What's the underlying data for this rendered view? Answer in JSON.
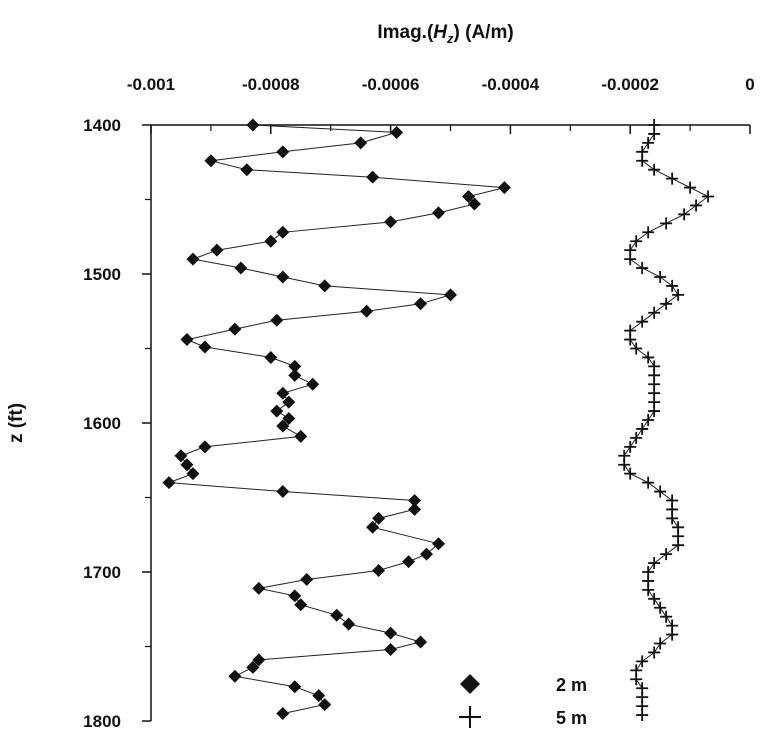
{
  "chart_data": {
    "type": "scatter",
    "title": "",
    "xlabel": "Imag.(H_z) (A/m)",
    "xlabel_parts": {
      "prefix": "Imag.(",
      "var": "H",
      "sub": "z",
      "suffix": ") (A/m)"
    },
    "ylabel": "z (ft)",
    "xlim": [
      -0.001,
      0
    ],
    "ylim": [
      1400,
      1800
    ],
    "y_inverted": true,
    "x_axis_position": "top",
    "grid": false,
    "xticks": [
      -0.001,
      -0.0008,
      -0.0006,
      -0.0004,
      -0.0002,
      0
    ],
    "xtick_labels": [
      "-0.001",
      "-0.0008",
      "-0.0006",
      "-0.0004",
      "-0.0002",
      "0"
    ],
    "yticks": [
      1400,
      1500,
      1600,
      1700,
      1800
    ],
    "ytick_labels": [
      "1400",
      "1500",
      "1600",
      "1700",
      "1800"
    ],
    "legend_position": "bottom-right",
    "series": [
      {
        "name": "2 m",
        "marker": "diamond",
        "points": [
          [
            -0.00083,
            1400
          ],
          [
            -0.00059,
            1405
          ],
          [
            -0.00065,
            1412
          ],
          [
            -0.00078,
            1418
          ],
          [
            -0.0009,
            1424
          ],
          [
            -0.00084,
            1430
          ],
          [
            -0.00063,
            1435
          ],
          [
            -0.00041,
            1442
          ],
          [
            -0.00047,
            1448
          ],
          [
            -0.00046,
            1453
          ],
          [
            -0.00052,
            1459
          ],
          [
            -0.0006,
            1465
          ],
          [
            -0.00078,
            1472
          ],
          [
            -0.0008,
            1478
          ],
          [
            -0.00089,
            1484
          ],
          [
            -0.00093,
            1490
          ],
          [
            -0.00085,
            1496
          ],
          [
            -0.00078,
            1502
          ],
          [
            -0.00071,
            1508
          ],
          [
            -0.0005,
            1514
          ],
          [
            -0.00055,
            1520
          ],
          [
            -0.00064,
            1525
          ],
          [
            -0.00079,
            1531
          ],
          [
            -0.00086,
            1537
          ],
          [
            -0.00094,
            1544
          ],
          [
            -0.00091,
            1549
          ],
          [
            -0.0008,
            1556
          ],
          [
            -0.00076,
            1562
          ],
          [
            -0.00076,
            1568
          ],
          [
            -0.00073,
            1574
          ],
          [
            -0.00078,
            1580
          ],
          [
            -0.00077,
            1586
          ],
          [
            -0.00079,
            1592
          ],
          [
            -0.00077,
            1597
          ],
          [
            -0.00078,
            1602
          ],
          [
            -0.00075,
            1609
          ],
          [
            -0.00091,
            1616
          ],
          [
            -0.00095,
            1622
          ],
          [
            -0.00094,
            1628
          ],
          [
            -0.00093,
            1634
          ],
          [
            -0.00097,
            1640
          ],
          [
            -0.00078,
            1646
          ],
          [
            -0.00056,
            1652
          ],
          [
            -0.00056,
            1658
          ],
          [
            -0.00062,
            1664
          ],
          [
            -0.00063,
            1670
          ],
          [
            -0.00052,
            1681
          ],
          [
            -0.00054,
            1688
          ],
          [
            -0.00057,
            1693
          ],
          [
            -0.00062,
            1699
          ],
          [
            -0.00074,
            1705
          ],
          [
            -0.00082,
            1711
          ],
          [
            -0.00076,
            1716
          ],
          [
            -0.00075,
            1722
          ],
          [
            -0.00069,
            1729
          ],
          [
            -0.00067,
            1735
          ],
          [
            -0.0006,
            1741
          ],
          [
            -0.00055,
            1747
          ],
          [
            -0.0006,
            1752
          ],
          [
            -0.00082,
            1759
          ],
          [
            -0.00083,
            1764
          ],
          [
            -0.00086,
            1770
          ],
          [
            -0.00076,
            1777
          ],
          [
            -0.00072,
            1783
          ],
          [
            -0.00071,
            1789
          ],
          [
            -0.00078,
            1795
          ]
        ]
      },
      {
        "name": "5 m",
        "marker": "plus",
        "points": [
          [
            -0.00016,
            1400
          ],
          [
            -0.00016,
            1406
          ],
          [
            -0.00017,
            1412
          ],
          [
            -0.00018,
            1418
          ],
          [
            -0.00018,
            1424
          ],
          [
            -0.00016,
            1430
          ],
          [
            -0.00013,
            1436
          ],
          [
            -0.0001,
            1442
          ],
          [
            -7e-05,
            1448
          ],
          [
            -9e-05,
            1454
          ],
          [
            -0.00011,
            1460
          ],
          [
            -0.00014,
            1466
          ],
          [
            -0.00017,
            1472
          ],
          [
            -0.00019,
            1478
          ],
          [
            -0.0002,
            1484
          ],
          [
            -0.0002,
            1490
          ],
          [
            -0.00018,
            1496
          ],
          [
            -0.00015,
            1502
          ],
          [
            -0.00013,
            1508
          ],
          [
            -0.00012,
            1514
          ],
          [
            -0.00014,
            1520
          ],
          [
            -0.00016,
            1526
          ],
          [
            -0.00018,
            1532
          ],
          [
            -0.0002,
            1538
          ],
          [
            -0.0002,
            1544
          ],
          [
            -0.00019,
            1550
          ],
          [
            -0.00017,
            1556
          ],
          [
            -0.00016,
            1562
          ],
          [
            -0.00016,
            1568
          ],
          [
            -0.00016,
            1574
          ],
          [
            -0.00016,
            1580
          ],
          [
            -0.00016,
            1586
          ],
          [
            -0.00016,
            1592
          ],
          [
            -0.00017,
            1598
          ],
          [
            -0.00018,
            1604
          ],
          [
            -0.00019,
            1610
          ],
          [
            -0.0002,
            1616
          ],
          [
            -0.00021,
            1622
          ],
          [
            -0.00021,
            1628
          ],
          [
            -0.0002,
            1634
          ],
          [
            -0.00017,
            1640
          ],
          [
            -0.00015,
            1646
          ],
          [
            -0.00013,
            1652
          ],
          [
            -0.00013,
            1658
          ],
          [
            -0.00013,
            1664
          ],
          [
            -0.00012,
            1670
          ],
          [
            -0.00012,
            1676
          ],
          [
            -0.00012,
            1682
          ],
          [
            -0.00014,
            1688
          ],
          [
            -0.00016,
            1694
          ],
          [
            -0.00017,
            1700
          ],
          [
            -0.00017,
            1706
          ],
          [
            -0.00017,
            1712
          ],
          [
            -0.00016,
            1718
          ],
          [
            -0.00015,
            1724
          ],
          [
            -0.00014,
            1730
          ],
          [
            -0.00013,
            1736
          ],
          [
            -0.00013,
            1742
          ],
          [
            -0.00015,
            1748
          ],
          [
            -0.00016,
            1754
          ],
          [
            -0.00018,
            1760
          ],
          [
            -0.00019,
            1766
          ],
          [
            -0.00019,
            1772
          ],
          [
            -0.00018,
            1778
          ],
          [
            -0.00018,
            1784
          ],
          [
            -0.00018,
            1790
          ],
          [
            -0.00018,
            1796
          ]
        ]
      }
    ]
  }
}
